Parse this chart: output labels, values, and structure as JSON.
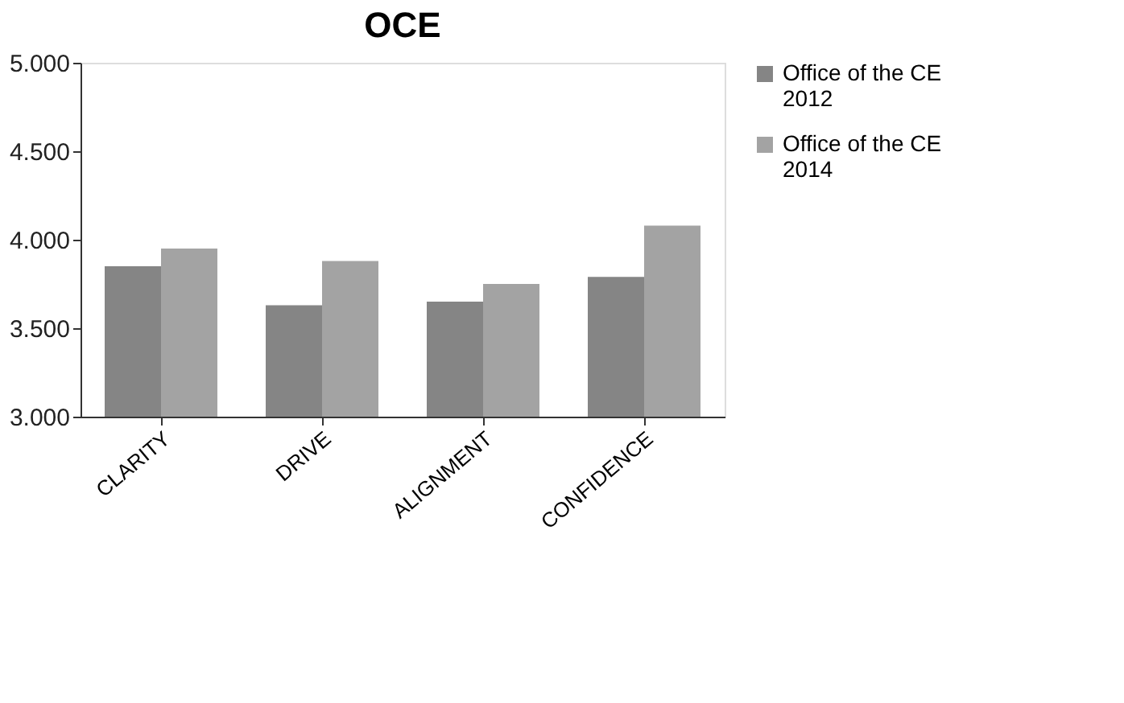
{
  "chart_data": {
    "type": "bar",
    "title": "OCE",
    "categories": [
      "CLARITY",
      "DRIVE",
      "ALIGNMENT",
      "CONFIDENCE"
    ],
    "series": [
      {
        "name": "Office of the CE 2012",
        "color": "#858585",
        "values": [
          3.85,
          3.63,
          3.65,
          3.79
        ]
      },
      {
        "name": "Office of the CE 2014",
        "color": "#a3a3a3",
        "values": [
          3.95,
          3.88,
          3.75,
          4.08
        ]
      }
    ],
    "ylim": [
      3.0,
      5.0
    ],
    "yticks": [
      {
        "value": 3.0,
        "label": "3.000"
      },
      {
        "value": 3.5,
        "label": "3.500"
      },
      {
        "value": 4.0,
        "label": "4.000"
      },
      {
        "value": 4.5,
        "label": "4.500"
      },
      {
        "value": 5.0,
        "label": "5.000"
      }
    ],
    "grid": false,
    "legend": "right"
  }
}
